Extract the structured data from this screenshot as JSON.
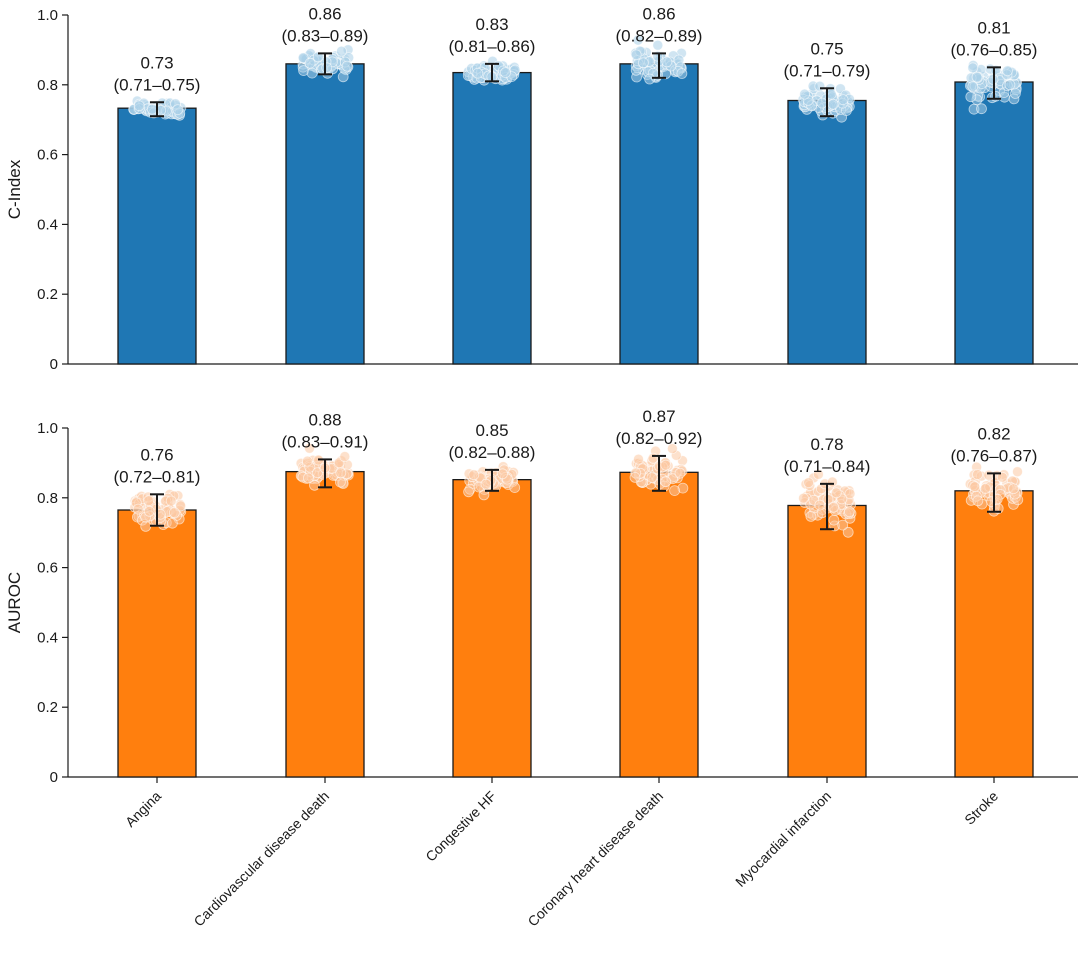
{
  "chart_data": [
    {
      "type": "bar",
      "title": "",
      "xlabel": "",
      "ylabel": "C-Index",
      "ylim": [
        0,
        1.0
      ],
      "yticks": [
        "0",
        "0.2",
        "0.4",
        "0.6",
        "0.8",
        "1.0"
      ],
      "categories": [
        "Angina",
        "Cardiovascular disease death",
        "Congestive HF",
        "Coronary heart disease death",
        "Myocardial infarction",
        "Stroke"
      ],
      "values": [
        0.733,
        0.86,
        0.835,
        0.86,
        0.755,
        0.808
      ],
      "ci_low": [
        0.71,
        0.83,
        0.81,
        0.82,
        0.71,
        0.76
      ],
      "ci_high": [
        0.75,
        0.89,
        0.86,
        0.89,
        0.79,
        0.85
      ],
      "value_labels": [
        "0.73",
        "0.86",
        "0.83",
        "0.86",
        "0.75",
        "0.81"
      ],
      "ci_labels": [
        "(0.71–0.75)",
        "(0.83–0.89)",
        "(0.81–0.86)",
        "(0.82–0.89)",
        "(0.71–0.79)",
        "(0.76–0.85)"
      ],
      "bar_color": "#1f77b4",
      "point_color": "#a9cfe8",
      "grid": false,
      "legend": "none"
    },
    {
      "type": "bar",
      "title": "",
      "xlabel": "",
      "ylabel": "AUROC",
      "ylim": [
        0,
        1.0
      ],
      "yticks": [
        "0",
        "0.2",
        "0.4",
        "0.6",
        "0.8",
        "1.0"
      ],
      "categories": [
        "Angina",
        "Cardiovascular disease death",
        "Congestive HF",
        "Coronary heart disease death",
        "Myocardial infarction",
        "Stroke"
      ],
      "values": [
        0.765,
        0.875,
        0.852,
        0.873,
        0.778,
        0.82
      ],
      "ci_low": [
        0.72,
        0.83,
        0.82,
        0.82,
        0.71,
        0.76
      ],
      "ci_high": [
        0.81,
        0.91,
        0.88,
        0.92,
        0.84,
        0.87
      ],
      "value_labels": [
        "0.76",
        "0.88",
        "0.85",
        "0.87",
        "0.78",
        "0.82"
      ],
      "ci_labels": [
        "(0.72–0.81)",
        "(0.83–0.91)",
        "(0.82–0.88)",
        "(0.82–0.92)",
        "(0.71–0.84)",
        "(0.76–0.87)"
      ],
      "bar_color": "#ff7f0e",
      "point_color": "#fcc9a3",
      "grid": false,
      "legend": "none"
    }
  ]
}
